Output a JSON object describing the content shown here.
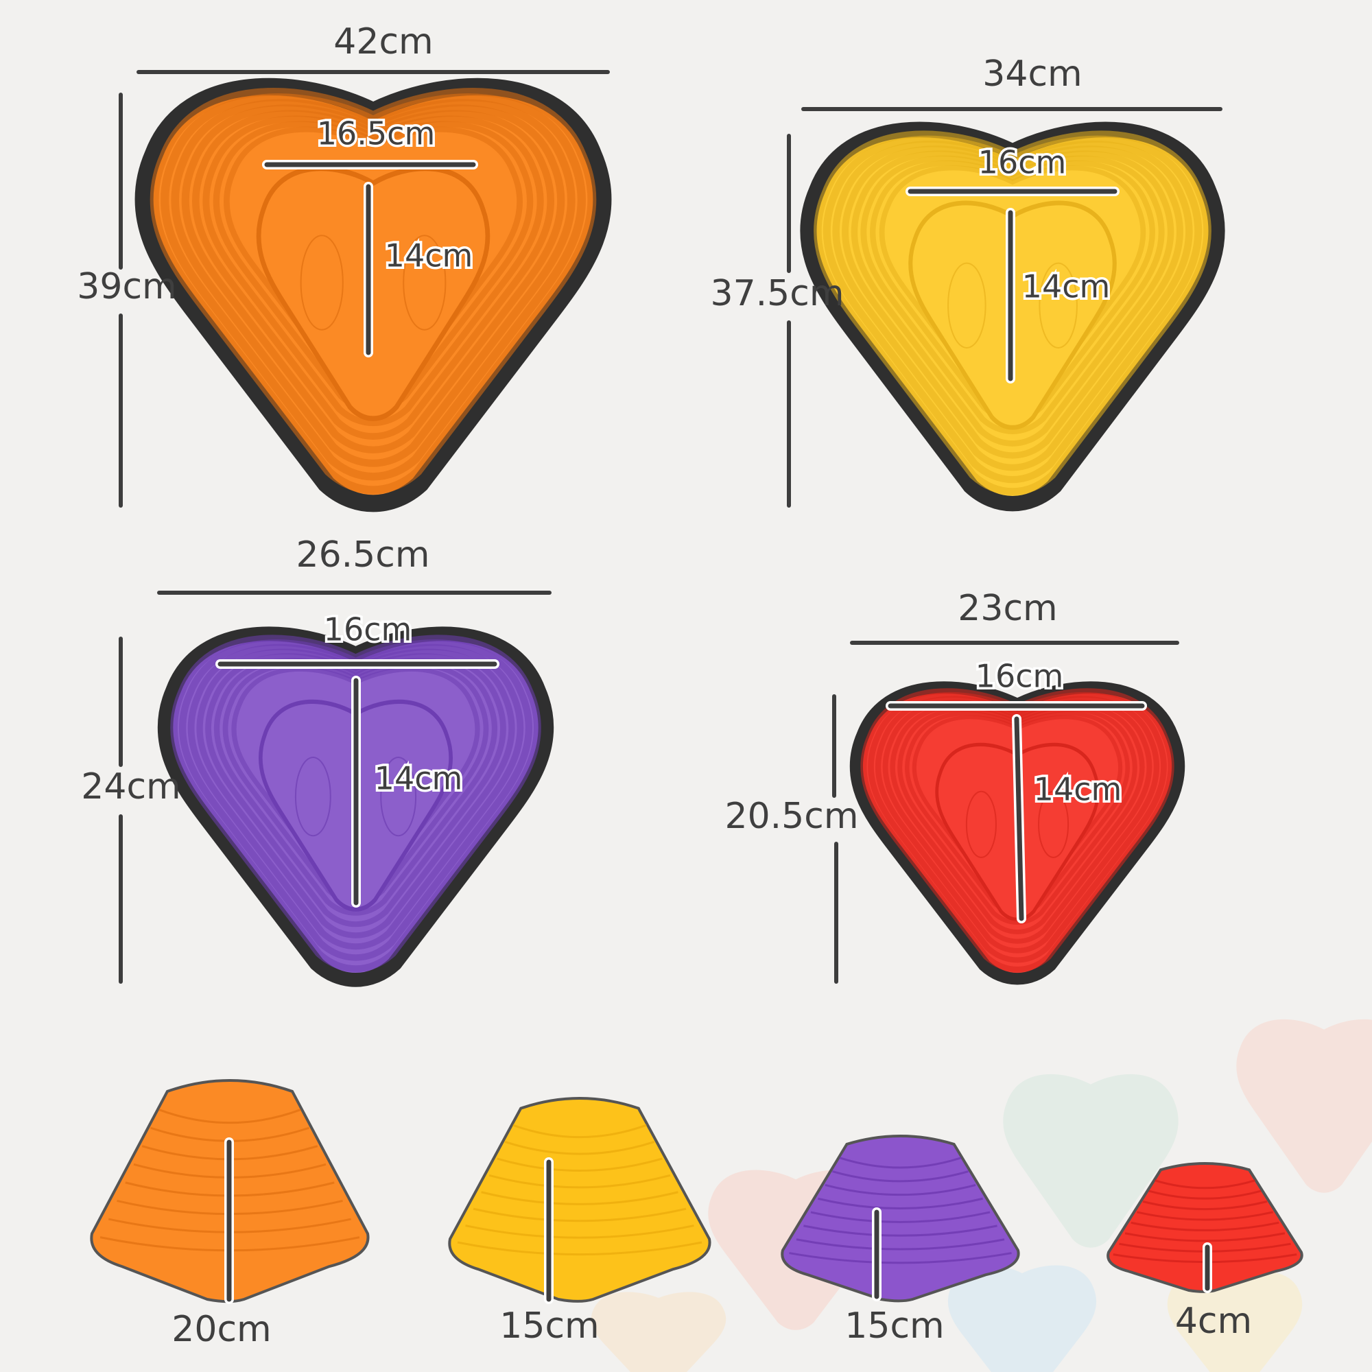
{
  "top_views": [
    {
      "color": "#fb8a25",
      "edge": "#e06f10",
      "width": "42cm",
      "height": "39cm",
      "inner_width": "16.5cm",
      "inner_height": "14cm"
    },
    {
      "color": "#fdcd35",
      "edge": "#e8b21c",
      "width": "34cm",
      "height": "37.5cm",
      "inner_width": "16cm",
      "inner_height": "14cm"
    },
    {
      "color": "#8c5fcb",
      "edge": "#6d3eb2",
      "width": "26.5cm",
      "height": "24cm",
      "inner_width": "16cm",
      "inner_height": "14cm"
    },
    {
      "color": "#f53d33",
      "edge": "#d8261d",
      "width": "23cm",
      "height": "20.5cm",
      "inner_width": "16cm",
      "inner_height": "14cm"
    }
  ],
  "side_views": [
    {
      "color": "#fb8a25",
      "edge": "#e06f10",
      "height": "20cm"
    },
    {
      "color": "#fdc21a",
      "edge": "#e9a90c",
      "height": "15cm"
    },
    {
      "color": "#8c55cc",
      "edge": "#6a35ad",
      "height": "15cm"
    },
    {
      "color": "#f5352a",
      "edge": "#d2201a",
      "height": "4cm"
    }
  ],
  "background_color": "#f2f1ef"
}
